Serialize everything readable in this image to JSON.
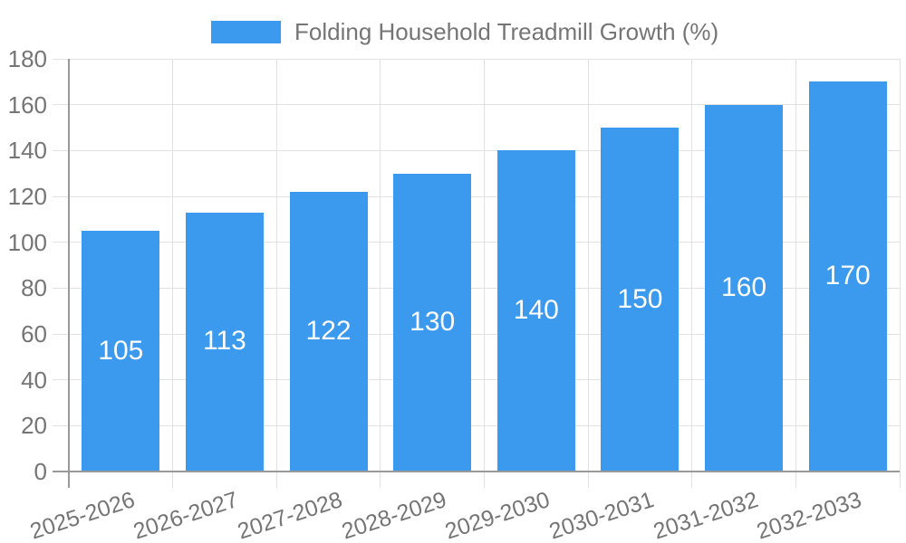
{
  "chart_data": {
    "type": "bar",
    "title": "Folding Household Treadmill Growth (%)",
    "legend_position": "top",
    "categories": [
      "2025-2026",
      "2026-2027",
      "2027-2028",
      "2028-2029",
      "2029-2030",
      "2030-2031",
      "2031-2032",
      "2032-2033"
    ],
    "series": [
      {
        "name": "Folding Household Treadmill Growth (%)",
        "values": [
          105,
          113,
          122,
          130,
          140,
          150,
          160,
          170
        ]
      }
    ],
    "value_labels": [
      "105",
      "113",
      "122",
      "130",
      "140",
      "150",
      "160",
      "170"
    ],
    "ytick_labels": [
      "0",
      "20",
      "40",
      "60",
      "80",
      "100",
      "120",
      "140",
      "160",
      "180"
    ],
    "xlabel": "",
    "ylabel": "",
    "ylim": [
      0,
      180
    ],
    "ytick_step": 20,
    "grid": true,
    "colors": {
      "bar": "#3B99EE",
      "value_label": "#FFFFFF",
      "axis": "#999999",
      "gridline": "#E2E2E2",
      "tick_text": "#757575",
      "legend_text": "#757575",
      "background": "#FFFFFF"
    }
  }
}
